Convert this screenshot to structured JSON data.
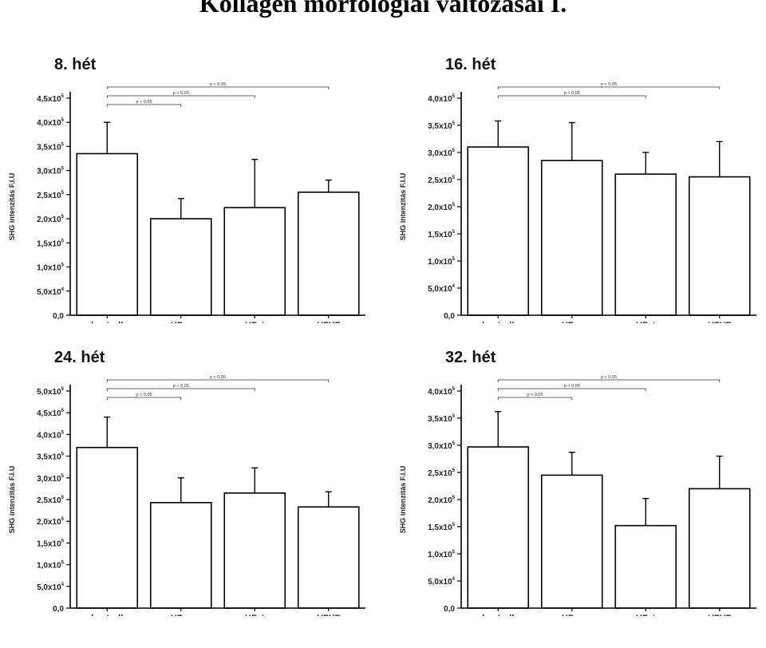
{
  "title": "Kollagén morfológiai változásai I.",
  "chart_data": [
    {
      "type": "bar",
      "title": "8. hét",
      "ylabel": "SHG intenzitás F.I.U",
      "categories": [
        "kontroll",
        "HFru",
        "HFat",
        "HFHF"
      ],
      "values": [
        335000,
        200000,
        223000,
        255000
      ],
      "errors": [
        65000,
        42000,
        100000,
        25000
      ],
      "ylim": [
        0,
        450000
      ],
      "yticks": [
        {
          "value": 0,
          "mant": "0,0",
          "exp": ""
        },
        {
          "value": 50000,
          "mant": "5,0x10",
          "exp": "4"
        },
        {
          "value": 100000,
          "mant": "1,0x10",
          "exp": "5"
        },
        {
          "value": 150000,
          "mant": "1,5x10",
          "exp": "5"
        },
        {
          "value": 200000,
          "mant": "2,0x10",
          "exp": "5"
        },
        {
          "value": 250000,
          "mant": "2,5x10",
          "exp": "5"
        },
        {
          "value": 300000,
          "mant": "3,0x10",
          "exp": "5"
        },
        {
          "value": 350000,
          "mant": "3,5x10",
          "exp": "5"
        },
        {
          "value": 400000,
          "mant": "4,0x10",
          "exp": "5"
        },
        {
          "value": 450000,
          "mant": "4,5x10",
          "exp": "5"
        }
      ],
      "significance": [
        {
          "to": 3,
          "label": "p < 0,05"
        },
        {
          "to": 2,
          "label": "p < 0,05"
        },
        {
          "to": 1,
          "label": "p < 0,05"
        }
      ]
    },
    {
      "type": "bar",
      "title": "16. hét",
      "ylabel": "SHG intenzitás F.I.U",
      "categories": [
        "kontroll",
        "HFru",
        "HFat",
        "HFHF"
      ],
      "values": [
        310000,
        285000,
        260000,
        255000
      ],
      "errors": [
        48000,
        70000,
        40000,
        65000
      ],
      "ylim": [
        0,
        400000
      ],
      "yticks": [
        {
          "value": 0,
          "mant": "0,0",
          "exp": ""
        },
        {
          "value": 50000,
          "mant": "5,0x10",
          "exp": "4"
        },
        {
          "value": 100000,
          "mant": "1,0x10",
          "exp": "5"
        },
        {
          "value": 150000,
          "mant": "1,5x10",
          "exp": "5"
        },
        {
          "value": 200000,
          "mant": "2,0x10",
          "exp": "5"
        },
        {
          "value": 250000,
          "mant": "2,5x10",
          "exp": "5"
        },
        {
          "value": 300000,
          "mant": "3,0x10",
          "exp": "5"
        },
        {
          "value": 350000,
          "mant": "3,5x10",
          "exp": "5"
        },
        {
          "value": 400000,
          "mant": "4,0x10",
          "exp": "5"
        }
      ],
      "significance": [
        {
          "to": 3,
          "label": "p < 0,05"
        },
        {
          "to": 2,
          "label": "p < 0,05"
        }
      ]
    },
    {
      "type": "bar",
      "title": "24. hét",
      "ylabel": "SHG intenzitás F.I.U",
      "categories": [
        "kontroll",
        "HFru",
        "HFat",
        "HFHF"
      ],
      "values": [
        370000,
        243000,
        265000,
        233000
      ],
      "errors": [
        70000,
        57000,
        58000,
        35000
      ],
      "ylim": [
        0,
        500000
      ],
      "yticks": [
        {
          "value": 0,
          "mant": "0,0",
          "exp": ""
        },
        {
          "value": 50000,
          "mant": "5,0x10",
          "exp": "4"
        },
        {
          "value": 100000,
          "mant": "1,0x10",
          "exp": "5"
        },
        {
          "value": 150000,
          "mant": "1,5x10",
          "exp": "5"
        },
        {
          "value": 200000,
          "mant": "2,0x10",
          "exp": "5"
        },
        {
          "value": 250000,
          "mant": "2,5x10",
          "exp": "5"
        },
        {
          "value": 300000,
          "mant": "3,0x10",
          "exp": "5"
        },
        {
          "value": 350000,
          "mant": "3,5x10",
          "exp": "5"
        },
        {
          "value": 400000,
          "mant": "4,0x10",
          "exp": "5"
        },
        {
          "value": 450000,
          "mant": "4,5x10",
          "exp": "5"
        },
        {
          "value": 500000,
          "mant": "5,0x10",
          "exp": "5"
        }
      ],
      "significance": [
        {
          "to": 3,
          "label": "p < 0,05"
        },
        {
          "to": 2,
          "label": "p < 0,05"
        },
        {
          "to": 1,
          "label": "p < 0,05"
        }
      ]
    },
    {
      "type": "bar",
      "title": "32. hét",
      "ylabel": "SHG intenzitás F.I.U",
      "categories": [
        "kontroll",
        "HFru",
        "HFat",
        "HFHF"
      ],
      "values": [
        297000,
        245000,
        152000,
        220000
      ],
      "errors": [
        65000,
        42000,
        50000,
        60000
      ],
      "ylim": [
        0,
        400000
      ],
      "yticks": [
        {
          "value": 0,
          "mant": "0,0",
          "exp": ""
        },
        {
          "value": 50000,
          "mant": "5,0x10",
          "exp": "4"
        },
        {
          "value": 100000,
          "mant": "1,0x10",
          "exp": "5"
        },
        {
          "value": 150000,
          "mant": "1,5x10",
          "exp": "5"
        },
        {
          "value": 200000,
          "mant": "2,0x10",
          "exp": "5"
        },
        {
          "value": 250000,
          "mant": "2,5x10",
          "exp": "5"
        },
        {
          "value": 300000,
          "mant": "3,0x10",
          "exp": "5"
        },
        {
          "value": 350000,
          "mant": "3,5x10",
          "exp": "5"
        },
        {
          "value": 400000,
          "mant": "4,0x10",
          "exp": "5"
        }
      ],
      "significance": [
        {
          "to": 3,
          "label": "p < 0,05"
        },
        {
          "to": 2,
          "label": "p < 0,05"
        },
        {
          "to": 1,
          "label": "p < 0,05"
        }
      ]
    }
  ]
}
